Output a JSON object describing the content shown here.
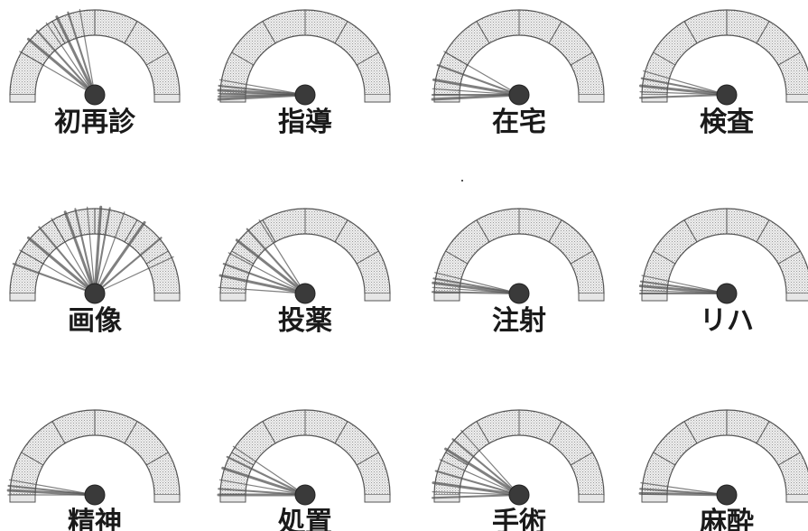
{
  "gauges": [
    {
      "label": "初再診",
      "needles": [
        100,
        108,
        116,
        124,
        132,
        140,
        150
      ]
    },
    {
      "label": "指導",
      "needles": [
        170,
        174,
        177,
        179,
        181,
        183
      ]
    },
    {
      "label": "在宅",
      "needles": [
        150,
        160,
        170,
        176,
        180,
        183
      ]
    },
    {
      "label": "検査",
      "needles": [
        164,
        169,
        174,
        178,
        182
      ]
    },
    {
      "label": "画像",
      "needles": [
        25,
        40,
        55,
        70,
        80,
        86,
        95,
        103,
        110,
        120,
        130,
        140,
        150,
        160
      ]
    },
    {
      "label": "投薬",
      "needles": [
        122,
        132,
        142,
        152,
        160,
        168,
        176
      ]
    },
    {
      "label": "注射",
      "needles": [
        166,
        170,
        173,
        176,
        179
      ]
    },
    {
      "label": "リハ",
      "needles": [
        168,
        172,
        175,
        178,
        180
      ]
    },
    {
      "label": "精神",
      "needles": [
        170,
        174,
        177,
        180
      ]
    },
    {
      "label": "処置",
      "needles": [
        146,
        154,
        162,
        170,
        176,
        180
      ]
    },
    {
      "label": "手術",
      "needles": [
        132,
        140,
        148,
        156,
        164,
        172,
        178,
        182
      ]
    },
    {
      "label": "麻酔",
      "needles": [
        172,
        176,
        179
      ]
    }
  ],
  "colors": {
    "ring_fill": "#e6e6e6",
    "ring_stroke": "#555555",
    "needle": "#555555",
    "hub": "#3a3a3a",
    "label": "#1a1a1a"
  }
}
